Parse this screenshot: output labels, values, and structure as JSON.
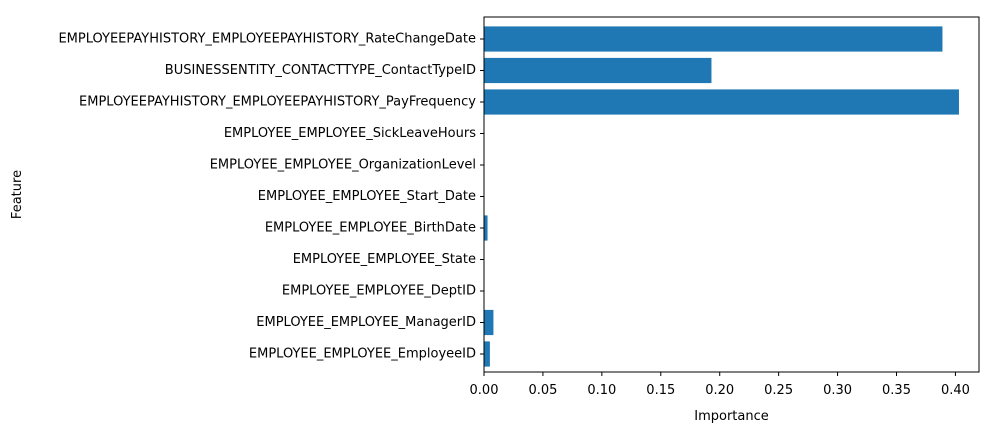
{
  "chart_data": {
    "type": "bar",
    "orientation": "horizontal",
    "title": "",
    "xlabel": "Importance",
    "ylabel": "Feature",
    "xlim": [
      0,
      0.42
    ],
    "xticks": [
      "0.00",
      "0.05",
      "0.10",
      "0.15",
      "0.20",
      "0.25",
      "0.30",
      "0.35",
      "0.40"
    ],
    "grid": false,
    "bar_color": "#1f77b4",
    "categories": [
      "EMPLOYEEPAYHISTORY_EMPLOYEEPAYHISTORY_RateChangeDate",
      "BUSINESSENTITY_CONTACTTYPE_ContactTypeID",
      "EMPLOYEEPAYHISTORY_EMPLOYEEPAYHISTORY_PayFrequency",
      "EMPLOYEE_EMPLOYEE_SickLeaveHours",
      "EMPLOYEE_EMPLOYEE_OrganizationLevel",
      "EMPLOYEE_EMPLOYEE_Start_Date",
      "EMPLOYEE_EMPLOYEE_BirthDate",
      "EMPLOYEE_EMPLOYEE_State",
      "EMPLOYEE_EMPLOYEE_DeptID",
      "EMPLOYEE_EMPLOYEE_ManagerID",
      "EMPLOYEE_EMPLOYEE_EmployeeID"
    ],
    "values": [
      0.389,
      0.193,
      0.403,
      0.0,
      0.0,
      0.0,
      0.003,
      0.0,
      0.0,
      0.008,
      0.005
    ]
  }
}
